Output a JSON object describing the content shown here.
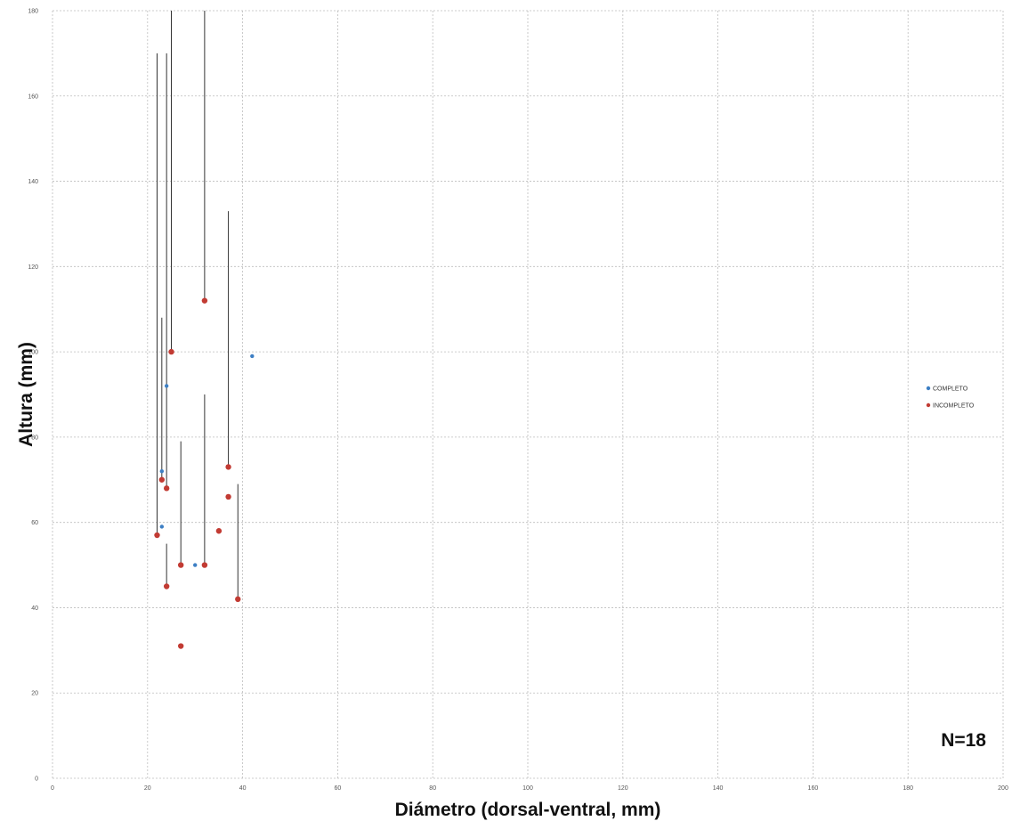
{
  "chart_data": {
    "type": "scatter",
    "xlabel": "Diámetro (dorsal-ventral, mm)",
    "ylabel": "Altura (mm)",
    "xlim": [
      0,
      200
    ],
    "ylim": [
      0,
      180
    ],
    "xticks": [
      0,
      20,
      40,
      60,
      80,
      100,
      120,
      140,
      160,
      180,
      200
    ],
    "yticks": [
      0,
      20,
      40,
      60,
      80,
      100,
      120,
      140,
      160,
      180
    ],
    "grid": true,
    "legend_position": "right",
    "annotation": "N=18",
    "series": [
      {
        "name": "COMPLETO",
        "color": "#3d7fc4",
        "points": [
          {
            "x": 23,
            "y": 59
          },
          {
            "x": 23,
            "y": 72
          },
          {
            "x": 24,
            "y": 92
          },
          {
            "x": 30,
            "y": 50
          },
          {
            "x": 42,
            "y": 99
          }
        ]
      },
      {
        "name": "INCOMPLETO",
        "color": "#c23b33",
        "points": [
          {
            "x": 22,
            "y": 57,
            "range_top": 170
          },
          {
            "x": 23,
            "y": 70,
            "range_top": 108
          },
          {
            "x": 24,
            "y": 68,
            "range_top": 170
          },
          {
            "x": 24,
            "y": 45,
            "range_top": 55
          },
          {
            "x": 25,
            "y": 100,
            "range_top": 180
          },
          {
            "x": 27,
            "y": 50,
            "range_top": 79
          },
          {
            "x": 27,
            "y": 31
          },
          {
            "x": 32,
            "y": 112,
            "range_top": 180
          },
          {
            "x": 32,
            "y": 50,
            "range_top": 90
          },
          {
            "x": 35,
            "y": 58
          },
          {
            "x": 37,
            "y": 73,
            "range_top": 133
          },
          {
            "x": 37,
            "y": 66
          },
          {
            "x": 39,
            "y": 42,
            "range_top": 69
          }
        ]
      }
    ],
    "range_line_color": "#333333"
  }
}
